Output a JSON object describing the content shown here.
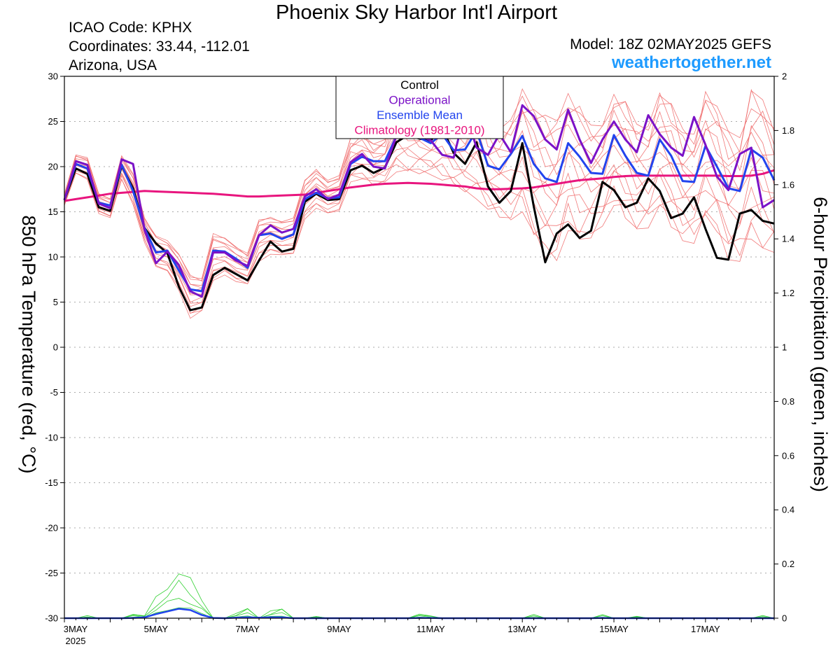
{
  "header": {
    "title": "Phoenix Sky Harbor Int'l Airport",
    "icao": "ICAO Code: KPHX",
    "coords": "Coordinates: 33.44, -112.01",
    "location": "Arizona, USA",
    "model": "Model: 18Z 02MAY2025 GEFS",
    "site": "weathertogether.net"
  },
  "colors": {
    "control": "#000000",
    "operational": "#7b12c7",
    "ensemble_mean": "#2244ee",
    "climatology": "#e8157e",
    "members": "#f06a6a",
    "precip": "#2fcf2f",
    "site": "#1e9bff"
  },
  "chart_data": {
    "type": "line",
    "ylabel": "850 hPa Temperature (red, °C)",
    "y2label": "6-hour Precipitation (green, inches)",
    "ylim": [
      -30,
      30
    ],
    "y2lim": [
      0,
      2
    ],
    "yticks": [
      30,
      25,
      20,
      15,
      10,
      5,
      0,
      -5,
      -10,
      -15,
      -20,
      -25,
      -30
    ],
    "y2ticks": [
      "2",
      "1.8",
      "1.6",
      "1.4",
      "1.2",
      "1",
      "0.8",
      "0.6",
      "0.4",
      "0.2",
      "0"
    ],
    "x_start": "2025-05-03 00Z",
    "x_step_hours": 6,
    "xticks": [
      {
        "label": "3MAY",
        "sub": "2025",
        "index": 0
      },
      {
        "label": "5MAY",
        "index": 8
      },
      {
        "label": "7MAY",
        "index": 16
      },
      {
        "label": "9MAY",
        "index": 24
      },
      {
        "label": "11MAY",
        "index": 32
      },
      {
        "label": "13MAY",
        "index": 40
      },
      {
        "label": "15MAY",
        "index": 48
      },
      {
        "label": "17MAY",
        "index": 56
      }
    ],
    "legend": {
      "position": "top-center",
      "entries": [
        "Control",
        "Operational",
        "Ensemble Mean",
        "Climatology (1981-2010)"
      ]
    },
    "grid": "horizontal-dotted",
    "series": [
      {
        "name": "Control",
        "values": [
          16.3,
          19.8,
          19.2,
          15.5,
          15.1,
          20.1,
          17.6,
          13.2,
          11.5,
          10.4,
          6.7,
          4.1,
          4.4,
          8.0,
          8.8,
          8.1,
          7.4,
          9.6,
          11.7,
          10.6,
          10.9,
          16.1,
          17.0,
          16.3,
          16.4,
          19.6,
          20.1,
          19.3,
          19.9,
          22.7,
          23.5,
          23.1,
          22.9,
          24.3,
          21.5,
          20.3,
          22.7,
          17.8,
          16.0,
          17.3,
          22.6,
          15.6,
          9.4,
          12.6,
          13.6,
          12.1,
          12.9,
          18.3,
          17.4,
          15.5,
          16.0,
          18.7,
          17.3,
          14.3,
          14.8,
          16.6,
          13.1,
          9.9,
          9.7,
          14.8,
          15.2,
          14.0,
          13.7
        ]
      },
      {
        "name": "Operational",
        "values": [
          16.3,
          20.6,
          20.2,
          15.9,
          15.4,
          20.8,
          20.3,
          13.0,
          9.3,
          10.6,
          9.1,
          6.2,
          5.6,
          10.5,
          10.5,
          9.6,
          9.0,
          12.4,
          13.5,
          12.7,
          13.1,
          16.7,
          17.5,
          16.4,
          16.9,
          20.5,
          21.4,
          20.0,
          19.8,
          23.4,
          23.3,
          23.5,
          22.9,
          21.3,
          21.0,
          26.1,
          22.1,
          21.3,
          23.6,
          21.6,
          26.8,
          25.6,
          23.0,
          21.9,
          26.3,
          23.0,
          20.4,
          23.0,
          25.0,
          23.0,
          21.6,
          25.7,
          23.6,
          22.1,
          21.2,
          25.5,
          22.4,
          18.9,
          17.4,
          21.4,
          22.1,
          15.5,
          16.3
        ]
      },
      {
        "name": "Ensemble Mean",
        "values": [
          16.3,
          20.3,
          19.8,
          16.0,
          15.7,
          20.2,
          17.3,
          13.2,
          10.5,
          10.7,
          8.5,
          6.4,
          6.2,
          10.7,
          10.6,
          9.8,
          8.8,
          12.4,
          12.6,
          12.0,
          12.5,
          16.4,
          17.1,
          16.5,
          16.6,
          20.3,
          21.1,
          20.6,
          20.6,
          23.4,
          23.5,
          23.2,
          22.6,
          23.6,
          21.8,
          21.9,
          24.0,
          20.1,
          19.7,
          21.4,
          23.4,
          20.3,
          18.7,
          18.3,
          22.6,
          21.1,
          19.3,
          19.2,
          23.5,
          21.2,
          19.3,
          19.0,
          23.0,
          21.2,
          18.4,
          18.3,
          22.3,
          20.0,
          17.6,
          17.3,
          21.9,
          21.0,
          18.5
        ]
      },
      {
        "name": "Climatology (1981-2010)",
        "values": [
          16.2,
          16.4,
          16.6,
          16.8,
          17.0,
          17.1,
          17.2,
          17.3,
          17.25,
          17.2,
          17.15,
          17.1,
          17.05,
          17.0,
          16.9,
          16.8,
          16.7,
          16.7,
          16.75,
          16.8,
          16.85,
          16.9,
          17.1,
          17.3,
          17.5,
          17.7,
          17.85,
          18.0,
          18.1,
          18.15,
          18.2,
          18.15,
          18.1,
          18.0,
          17.9,
          17.8,
          17.6,
          17.5,
          17.5,
          17.55,
          17.6,
          17.7,
          17.9,
          18.1,
          18.3,
          18.5,
          18.6,
          18.7,
          18.85,
          18.95,
          19.0,
          19.0,
          19.0,
          19.0,
          19.0,
          19.0,
          19.0,
          19.0,
          18.95,
          18.95,
          19.0,
          19.2,
          19.6
        ]
      }
    ],
    "members_envelope": {
      "upper": [
        17.0,
        21.3,
        21.0,
        17.0,
        16.5,
        21.2,
        19.2,
        14.3,
        12.4,
        11.8,
        10.3,
        8.0,
        7.6,
        12.6,
        12.1,
        11.2,
        10.4,
        14.1,
        14.4,
        14.0,
        14.3,
        18.5,
        19.7,
        18.5,
        19.0,
        23.2,
        23.8,
        22.5,
        23.0,
        27.3,
        27.2,
        26.0,
        25.6,
        27.8,
        26.0,
        25.7,
        28.1,
        25.0,
        24.1,
        25.2,
        28.6,
        26.6,
        25.7,
        25.1,
        28.1,
        26.7,
        24.6,
        24.5,
        28.0,
        27.2,
        24.7,
        24.5,
        28.3,
        27.0,
        24.2,
        23.6,
        28.3,
        26.7,
        23.9,
        23.2,
        28.5,
        27.4,
        24.2
      ],
      "lower": [
        15.7,
        19.2,
        18.6,
        14.8,
        14.3,
        18.5,
        15.8,
        11.6,
        8.8,
        8.4,
        6.3,
        3.2,
        3.9,
        7.4,
        8.0,
        7.2,
        6.9,
        9.5,
        10.3,
        10.1,
        10.3,
        14.2,
        15.4,
        14.7,
        15.1,
        18.3,
        18.5,
        17.9,
        18.3,
        19.4,
        19.0,
        19.2,
        19.1,
        18.5,
        17.9,
        17.2,
        16.4,
        15.2,
        14.4,
        14.1,
        15.0,
        11.7,
        9.9,
        9.6,
        12.9,
        11.2,
        12.1,
        13.4,
        15.7,
        14.3,
        13.1,
        13.2,
        15.1,
        13.3,
        11.8,
        11.5,
        13.7,
        12.8,
        9.7,
        9.5,
        11.8,
        11.0,
        10.5
      ]
    },
    "precip": {
      "max": [
        0,
        0,
        0.01,
        0,
        0,
        0,
        0.02,
        0.01,
        0.08,
        0.14,
        0.2,
        0.15,
        0.08,
        0,
        0,
        0.02,
        0.05,
        0,
        0.03,
        0.05,
        0,
        0,
        0.01,
        0,
        0,
        0,
        0,
        0,
        0,
        0,
        0,
        0.02,
        0.01,
        0,
        0,
        0,
        0,
        0,
        0,
        0,
        0,
        0.02,
        0,
        0,
        0,
        0,
        0,
        0.02,
        0,
        0,
        0.01,
        0,
        0,
        0,
        0,
        0,
        0,
        0,
        0,
        0,
        0,
        0.01,
        0
      ],
      "mean": [
        0,
        0,
        0,
        0,
        0,
        0,
        0.001,
        0.003,
        0.015,
        0.025,
        0.035,
        0.03,
        0.012,
        0.001,
        0,
        0.002,
        0.003,
        0.002,
        0.003,
        0.003,
        0,
        0,
        0,
        0,
        0,
        0,
        0,
        0,
        0,
        0,
        0,
        0.001,
        0.001,
        0,
        0,
        0,
        0,
        0,
        0,
        0,
        0,
        0,
        0,
        0,
        0,
        0,
        0,
        0.001,
        0,
        0,
        0,
        0,
        0,
        0,
        0,
        0,
        0,
        0,
        0,
        0,
        0,
        0,
        0
      ]
    }
  }
}
